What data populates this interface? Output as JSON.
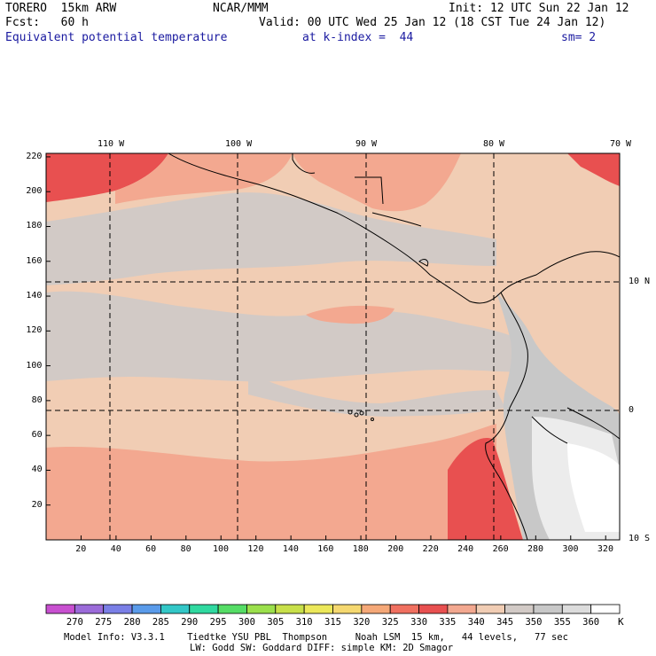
{
  "header": {
    "model": "TORERO  15km ARW",
    "center": "NCAR/MMM",
    "init": "Init: 12 UTC Sun 22 Jan 12",
    "fcst": "Fcst:   60 h",
    "valid": "Valid: 00 UTC Wed 25 Jan 12 (18 CST Tue 24 Jan 12)",
    "field": "Equivalent potential temperature",
    "level": "at k-index =  44",
    "smooth": "sm= 2"
  },
  "axes": {
    "top_lon_labels": [
      "110 W",
      "100 W",
      "90 W",
      "80 W",
      "70 W"
    ],
    "right_lat_labels": [
      "10 N",
      "0",
      "10 S"
    ],
    "left_grid_labels": [
      "220",
      "200",
      "180",
      "160",
      "140",
      "120",
      "100",
      "80",
      "60",
      "40",
      "20"
    ],
    "bottom_grid_labels": [
      "20",
      "40",
      "60",
      "80",
      "100",
      "120",
      "140",
      "160",
      "180",
      "200",
      "220",
      "240",
      "260",
      "280",
      "300",
      "320"
    ]
  },
  "legend": {
    "unit": "K",
    "levels": [
      "270",
      "275",
      "280",
      "285",
      "290",
      "295",
      "300",
      "305",
      "310",
      "315",
      "320",
      "325",
      "330",
      "335",
      "340",
      "345",
      "350",
      "355",
      "360"
    ],
    "colors": [
      "#c850d0",
      "#9b6bd9",
      "#7a7fe6",
      "#5a9bea",
      "#33c7c7",
      "#30d9a0",
      "#55dd66",
      "#9be04c",
      "#c8e04a",
      "#ece85a",
      "#f5d870",
      "#f5a878",
      "#f07060",
      "#e85050",
      "#f3a890",
      "#f1cdb4",
      "#d2cac6",
      "#c8c8c8",
      "#dcdcdc",
      "#ffffff"
    ]
  },
  "footer": {
    "line1": "Model Info: V3.3.1    Tiedtke YSU PBL  Thompson     Noah LSM  15 km,   44 levels,   77 sec",
    "line2": "LW: Godd SW: Goddard DIFF: simple KM: 2D Smagor"
  }
}
